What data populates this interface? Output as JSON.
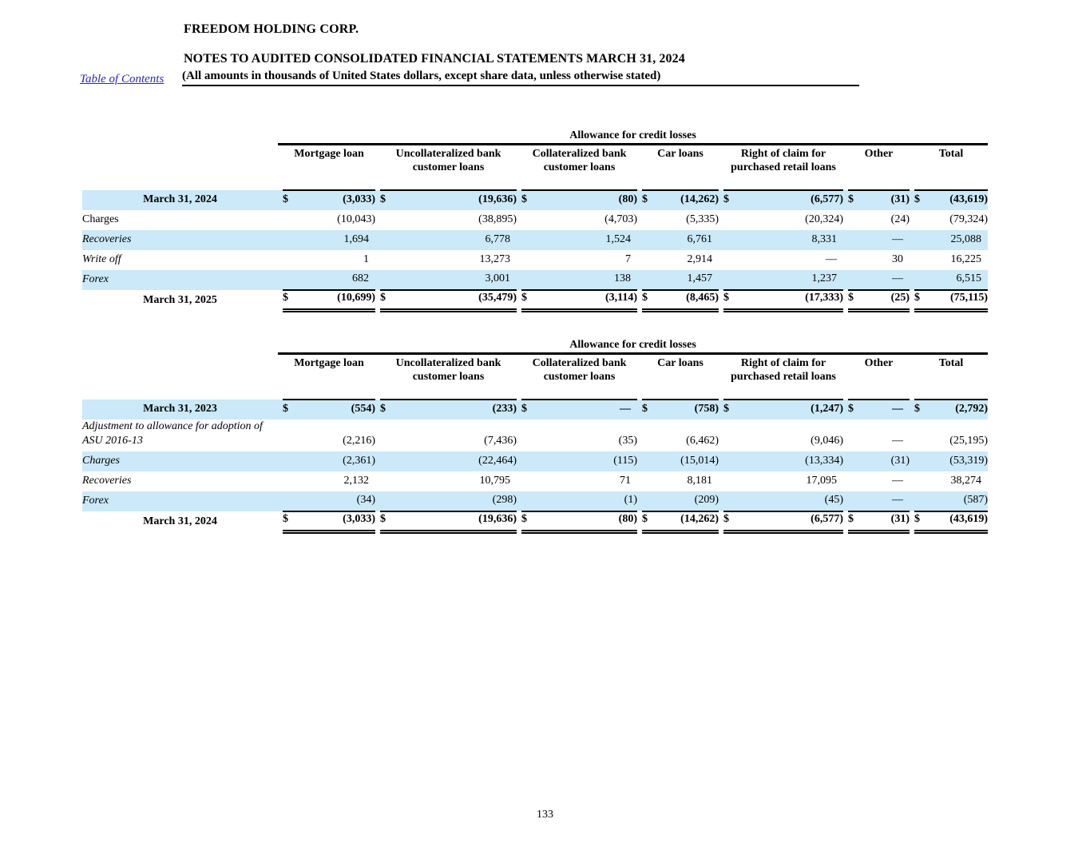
{
  "page": {
    "toc_link": "Table of Contents",
    "company": "FREEDOM HOLDING CORP.",
    "title": "NOTES TO AUDITED CONSOLIDATED FINANCIAL STATEMENTS MARCH 31, 2024",
    "subtitle": "(All amounts in thousands of United States dollars, except share data, unless otherwise stated)",
    "page_number": "133"
  },
  "colors": {
    "stripe": "#cbe9f8",
    "link": "#2727cc",
    "text": "#000000"
  },
  "currency_symbol": "$",
  "tables": [
    {
      "caption": "Allowance for credit losses",
      "columns": [
        "Mortgage loan",
        "Uncollateralized bank customer loans",
        "Collateralized bank customer loans",
        "Car loans",
        "Right of claim for purchased retail loans",
        "Other",
        "Total"
      ],
      "rows": [
        {
          "label": "March 31, 2024",
          "italic": false,
          "values": [
            "(3,033)",
            "(19,636)",
            "(80)",
            "(14,262)",
            "(6,577)",
            "(31)",
            "(43,619)"
          ]
        },
        {
          "label": "Charges",
          "italic": false,
          "values": [
            "(10,043)",
            "(38,895)",
            "(4,703)",
            "(5,335)",
            "(20,324)",
            "(24)",
            "(79,324)"
          ]
        },
        {
          "label": "Recoveries",
          "italic": true,
          "values": [
            "1,694",
            "6,778",
            "1,524",
            "6,761",
            "8,331",
            "—",
            "25,088"
          ]
        },
        {
          "label": "Write off",
          "italic": true,
          "values": [
            "1",
            "13,273",
            "7",
            "2,914",
            "—",
            "30",
            "16,225"
          ]
        },
        {
          "label": "Forex",
          "italic": true,
          "values": [
            "682",
            "3,001",
            "138",
            "1,457",
            "1,237",
            "—",
            "6,515"
          ]
        },
        {
          "label": "March 31, 2025",
          "italic": false,
          "values": [
            "(10,699)",
            "(35,479)",
            "(3,114)",
            "(8,465)",
            "(17,333)",
            "(25)",
            "(75,115)"
          ]
        }
      ]
    },
    {
      "caption": "Allowance for credit losses",
      "columns": [
        "Mortgage loan",
        "Uncollateralized bank customer loans",
        "Collateralized bank customer loans",
        "Car loans",
        "Right of claim for purchased retail loans",
        "Other",
        "Total"
      ],
      "rows": [
        {
          "label": "March 31, 2023",
          "italic": false,
          "values": [
            "(554)",
            "(233)",
            "—",
            "(758)",
            "(1,247)",
            "—",
            "(2,792)"
          ]
        },
        {
          "label": "Adjustment to allowance for adoption of ASU 2016-13",
          "italic": true,
          "values": [
            "(2,216)",
            "(7,436)",
            "(35)",
            "(6,462)",
            "(9,046)",
            "—",
            "(25,195)"
          ]
        },
        {
          "label": "Charges",
          "italic": true,
          "values": [
            "(2,361)",
            "(22,464)",
            "(115)",
            "(15,014)",
            "(13,334)",
            "(31)",
            "(53,319)"
          ]
        },
        {
          "label": "Recoveries",
          "italic": true,
          "values": [
            "2,132",
            "10,795",
            "71",
            "8,181",
            "17,095",
            "—",
            "38,274"
          ]
        },
        {
          "label": "Forex",
          "italic": true,
          "values": [
            "(34)",
            "(298)",
            "(1)",
            "(209)",
            "(45)",
            "—",
            "(587)"
          ]
        },
        {
          "label": "March 31, 2024",
          "italic": false,
          "values": [
            "(3,033)",
            "(19,636)",
            "(80)",
            "(14,262)",
            "(6,577)",
            "(31)",
            "(43,619)"
          ]
        }
      ]
    }
  ]
}
